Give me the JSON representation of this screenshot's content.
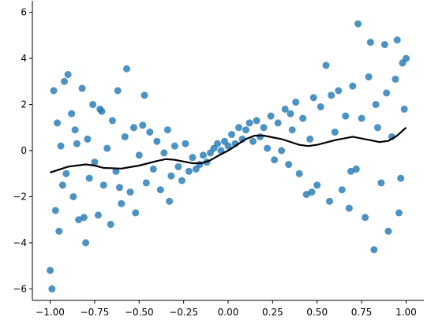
{
  "chart_data": {
    "type": "scatter",
    "x": [
      -1.0,
      -0.99,
      -0.98,
      -0.97,
      -0.96,
      -0.95,
      -0.94,
      -0.92,
      -0.91,
      -0.9,
      -0.88,
      -0.87,
      -0.85,
      -0.84,
      -0.82,
      -0.8,
      -0.79,
      -0.78,
      -0.76,
      -0.75,
      -0.73,
      -0.72,
      -0.7,
      -0.68,
      -0.66,
      -0.65,
      -0.63,
      -0.62,
      -0.6,
      -0.58,
      -0.57,
      -0.55,
      -0.53,
      -0.52,
      -0.5,
      -0.48,
      -0.46,
      -0.44,
      -0.42,
      -0.4,
      -0.38,
      -0.36,
      -0.34,
      -0.32,
      -0.3,
      -0.28,
      -0.26,
      -0.24,
      -0.22,
      -0.2,
      -0.18,
      -0.16,
      -0.14,
      -0.12,
      -0.1,
      -0.08,
      -0.06,
      -0.04,
      -0.02,
      0.0,
      0.02,
      0.04,
      0.06,
      0.08,
      0.1,
      0.12,
      0.14,
      0.16,
      0.18,
      0.2,
      0.22,
      0.24,
      0.26,
      0.28,
      0.3,
      0.32,
      0.34,
      0.36,
      0.38,
      0.4,
      0.42,
      0.44,
      0.46,
      0.48,
      0.5,
      0.52,
      0.55,
      0.57,
      0.6,
      0.62,
      0.64,
      0.66,
      0.68,
      0.7,
      0.72,
      0.73,
      0.75,
      0.77,
      0.79,
      0.8,
      0.82,
      0.84,
      0.86,
      0.88,
      0.89,
      0.9,
      0.92,
      0.94,
      0.95,
      0.96,
      0.98,
      0.99,
      1.0,
      -0.93,
      -0.86,
      -0.81,
      -0.71,
      -0.61,
      -0.47,
      -0.33,
      0.35,
      0.47,
      0.58,
      0.69,
      0.83,
      0.97
    ],
    "y": [
      -5.2,
      -6.0,
      2.6,
      -2.6,
      1.2,
      -3.5,
      0.2,
      3.0,
      -1.0,
      3.3,
      1.6,
      -2.0,
      0.3,
      -3.0,
      2.7,
      -4.0,
      0.5,
      -1.2,
      2.0,
      -0.5,
      -2.8,
      1.8,
      -1.5,
      0.1,
      -3.2,
      1.3,
      -0.9,
      2.6,
      -2.3,
      0.6,
      3.55,
      -1.8,
      1.0,
      -2.7,
      -0.2,
      1.1,
      -1.4,
      0.8,
      -0.8,
      0.4,
      -1.7,
      -0.1,
      0.9,
      -1.1,
      0.2,
      -0.7,
      -1.3,
      0.3,
      -0.9,
      -0.3,
      -0.8,
      -0.6,
      -0.2,
      -0.5,
      -0.1,
      0.1,
      0.3,
      0.0,
      0.4,
      0.2,
      0.7,
      0.3,
      1.0,
      0.5,
      0.9,
      1.2,
      0.4,
      1.3,
      0.6,
      1.0,
      0.1,
      1.5,
      -0.4,
      1.2,
      0.0,
      1.8,
      -0.6,
      0.9,
      2.1,
      -1.0,
      1.4,
      -1.9,
      0.5,
      2.3,
      -1.5,
      1.9,
      3.7,
      -2.2,
      0.8,
      2.6,
      -1.7,
      1.5,
      -2.5,
      2.8,
      -0.8,
      5.5,
      1.4,
      -2.9,
      3.2,
      4.7,
      -4.3,
      1.0,
      -1.4,
      4.6,
      2.5,
      -3.5,
      0.6,
      3.1,
      4.8,
      -2.7,
      3.8,
      1.8,
      4.0,
      -1.5,
      0.9,
      -2.9,
      1.7,
      -1.6,
      2.4,
      -2.2,
      1.6,
      -1.8,
      2.4,
      -0.9,
      2.0,
      -1.2
    ],
    "color": "#1f77b4",
    "line": {
      "x": [
        -1.0,
        -0.9,
        -0.8,
        -0.75,
        -0.7,
        -0.6,
        -0.5,
        -0.4,
        -0.35,
        -0.3,
        -0.2,
        -0.15,
        -0.1,
        -0.05,
        0.0,
        0.05,
        0.1,
        0.15,
        0.2,
        0.3,
        0.4,
        0.45,
        0.5,
        0.6,
        0.7,
        0.8,
        0.85,
        0.9,
        0.95,
        1.0
      ],
      "y": [
        -0.95,
        -0.7,
        -0.6,
        -0.65,
        -0.75,
        -0.78,
        -0.65,
        -0.45,
        -0.37,
        -0.4,
        -0.55,
        -0.55,
        -0.42,
        -0.2,
        0.0,
        0.25,
        0.5,
        0.65,
        0.65,
        0.5,
        0.25,
        0.2,
        0.25,
        0.45,
        0.6,
        0.45,
        0.37,
        0.42,
        0.65,
        1.0
      ],
      "color": "#000000"
    },
    "xlim": [
      -1.1,
      1.1
    ],
    "ylim": [
      -6.5,
      6.5
    ],
    "xticks": [
      {
        "value": -1.0,
        "label": "−1.00"
      },
      {
        "value": -0.75,
        "label": "−0.75"
      },
      {
        "value": -0.5,
        "label": "−0.50"
      },
      {
        "value": -0.25,
        "label": "−0.25"
      },
      {
        "value": 0,
        "label": "0.00"
      },
      {
        "value": 0.25,
        "label": "0.25"
      },
      {
        "value": 0.5,
        "label": "0.50"
      },
      {
        "value": 0.75,
        "label": "0.75"
      },
      {
        "value": 1.0,
        "label": "1.00"
      }
    ],
    "yticks": [
      {
        "value": -6,
        "label": "−6"
      },
      {
        "value": -4,
        "label": "−4"
      },
      {
        "value": -2,
        "label": "−2"
      },
      0,
      2,
      4,
      6
    ]
  }
}
